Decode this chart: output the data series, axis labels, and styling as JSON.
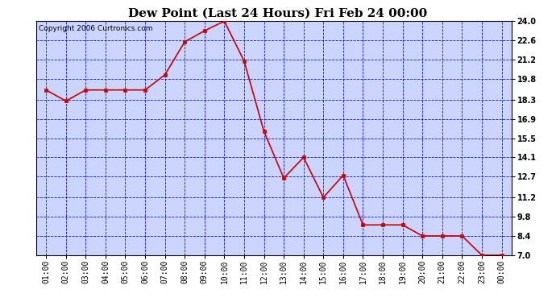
{
  "title": "Dew Point (Last 24 Hours) Fri Feb 24 00:00",
  "copyright": "Copyright 2006 Curtronics.com",
  "x_labels": [
    "01:00",
    "02:00",
    "03:00",
    "04:00",
    "05:00",
    "06:00",
    "07:00",
    "08:00",
    "09:00",
    "10:00",
    "11:00",
    "12:00",
    "13:00",
    "14:00",
    "15:00",
    "16:00",
    "17:00",
    "18:00",
    "19:00",
    "20:00",
    "21:00",
    "22:00",
    "23:00",
    "00:00"
  ],
  "y_values": [
    19.0,
    18.2,
    19.0,
    19.0,
    19.0,
    19.0,
    20.1,
    22.5,
    23.3,
    24.0,
    21.1,
    16.0,
    12.6,
    14.1,
    11.2,
    12.8,
    9.2,
    9.2,
    9.2,
    8.4,
    8.4,
    8.4,
    7.0,
    7.0
  ],
  "line_color": "#cc0000",
  "marker_color": "#cc0000",
  "plot_bg_color": "#ccd5ff",
  "grid_color": "#0000bb",
  "title_bg_color": "#ffffff",
  "border_color": "#000000",
  "y_min": 7.0,
  "y_max": 24.0,
  "y_ticks": [
    7.0,
    8.4,
    9.8,
    11.2,
    12.7,
    14.1,
    15.5,
    16.9,
    18.3,
    19.8,
    21.2,
    22.6,
    24.0
  ],
  "title_fontsize": 11,
  "tick_fontsize": 7,
  "copyright_fontsize": 6.5
}
